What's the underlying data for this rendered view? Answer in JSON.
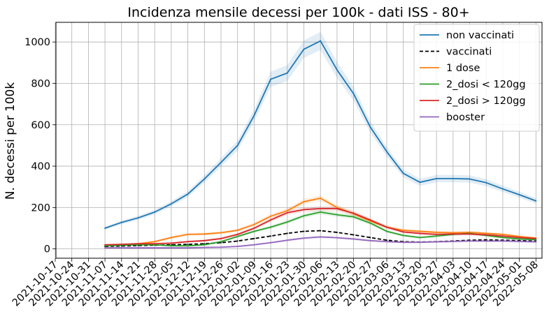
{
  "chart_data": {
    "type": "line",
    "title": "Incidenza mensile decessi per 100k - dati ISS - 80+",
    "xlabel": "",
    "ylabel": "N. decessi per 100k",
    "ylim": [
      -45,
      1095
    ],
    "yticks": [
      0,
      200,
      400,
      600,
      800,
      1000
    ],
    "grid": true,
    "legend_position": "top-right",
    "categories": [
      "2021-10-17",
      "2021-10-24",
      "2021-10-31",
      "2021-11-07",
      "2021-11-14",
      "2021-11-21",
      "2021-11-28",
      "2021-12-05",
      "2021-12-12",
      "2021-12-19",
      "2021-12-26",
      "2022-01-02",
      "2022-01-09",
      "2022-01-16",
      "2022-01-23",
      "2022-01-30",
      "2022-02-06",
      "2022-02-13",
      "2022-02-20",
      "2022-02-27",
      "2022-03-06",
      "2022-03-13",
      "2022-03-20",
      "2022-03-27",
      "2022-04-03",
      "2022-04-10",
      "2022-04-17",
      "2022-04-24",
      "2022-05-01",
      "2022-05-08"
    ],
    "series": [
      {
        "name": "non vaccinati",
        "color": "#1f77b4",
        "dash": "solid",
        "band": true,
        "values": [
          null,
          null,
          null,
          100,
          128,
          150,
          178,
          218,
          265,
          338,
          418,
          500,
          645,
          820,
          850,
          965,
          1005,
          865,
          750,
          590,
          470,
          365,
          322,
          340,
          340,
          338,
          320,
          290,
          262,
          232
        ]
      },
      {
        "name": "vaccinati",
        "color": "#000000",
        "dash": "dashed",
        "band": false,
        "values": [
          null,
          null,
          null,
          12,
          14,
          16,
          18,
          20,
          22,
          25,
          30,
          38,
          50,
          62,
          75,
          85,
          88,
          80,
          68,
          55,
          42,
          35,
          33,
          35,
          38,
          42,
          44,
          42,
          40,
          38
        ]
      },
      {
        "name": "1 dose",
        "color": "#ff7f0e",
        "dash": "solid",
        "band": true,
        "values": [
          null,
          null,
          null,
          15,
          20,
          25,
          35,
          55,
          70,
          72,
          78,
          90,
          118,
          158,
          185,
          228,
          245,
          200,
          170,
          135,
          105,
          90,
          85,
          80,
          78,
          80,
          75,
          70,
          60,
          52
        ]
      },
      {
        "name": "2_dosi < 120gg",
        "color": "#2ca02c",
        "dash": "solid",
        "band": true,
        "values": [
          null,
          null,
          null,
          15,
          18,
          20,
          20,
          15,
          15,
          20,
          35,
          60,
          85,
          105,
          130,
          160,
          178,
          165,
          155,
          125,
          85,
          65,
          55,
          62,
          70,
          75,
          65,
          55,
          48,
          45
        ]
      },
      {
        "name": "2_dosi > 120gg",
        "color": "#d62728",
        "dash": "solid",
        "band": true,
        "values": [
          null,
          null,
          null,
          20,
          22,
          25,
          25,
          28,
          35,
          40,
          50,
          70,
          100,
          140,
          175,
          190,
          195,
          195,
          172,
          140,
          105,
          82,
          75,
          70,
          72,
          72,
          68,
          62,
          55,
          50
        ]
      },
      {
        "name": "booster",
        "color": "#9467bd",
        "dash": "solid",
        "band": true,
        "values": [
          null,
          null,
          null,
          5,
          5,
          5,
          5,
          5,
          5,
          7,
          8,
          12,
          20,
          30,
          42,
          52,
          58,
          54,
          48,
          40,
          35,
          32,
          32,
          34,
          36,
          38,
          38,
          38,
          36,
          34
        ]
      }
    ]
  }
}
